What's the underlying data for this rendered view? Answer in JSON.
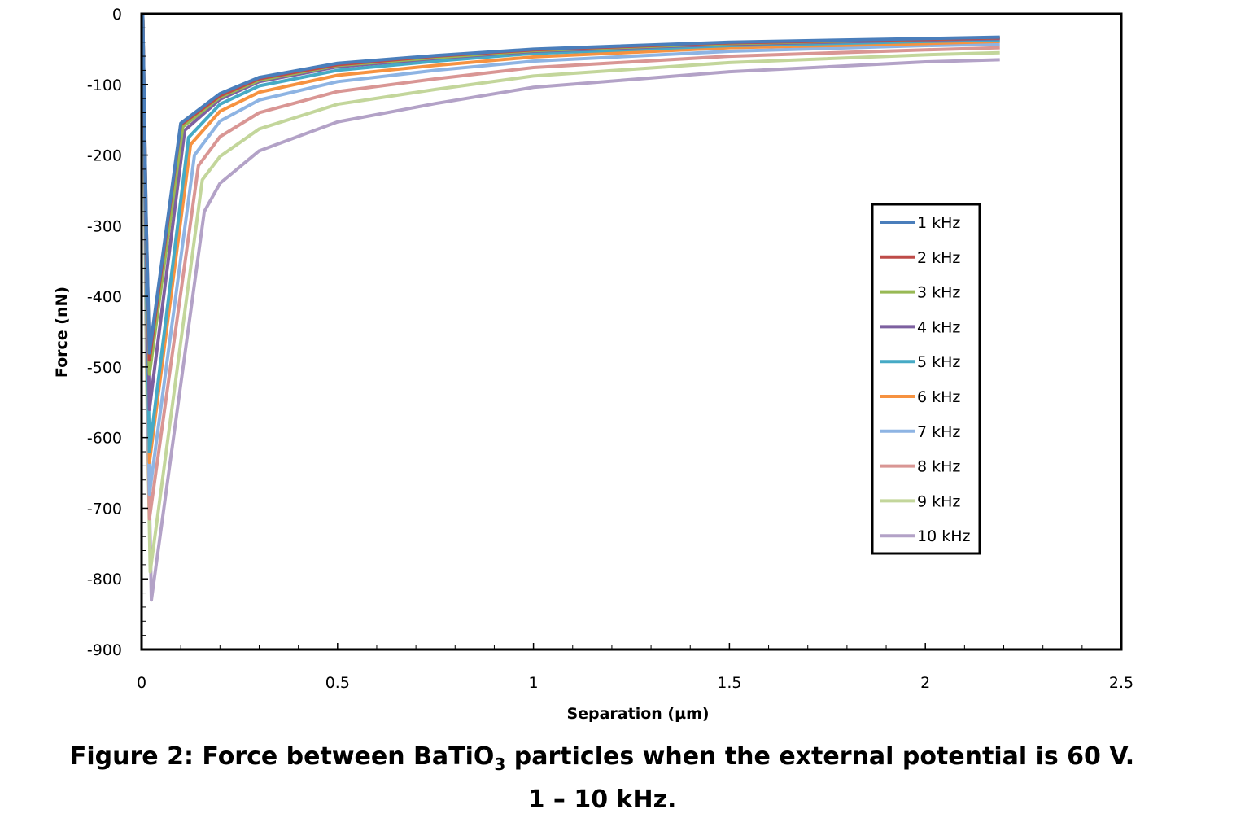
{
  "chart_data": {
    "type": "line",
    "title": "",
    "xlabel": "Separation (µm)",
    "ylabel": "Force (nN)",
    "xlim": [
      0,
      2.5
    ],
    "ylim": [
      -900,
      0
    ],
    "x_ticks": [
      "0",
      "0.5",
      "1",
      "1.5",
      "2",
      "2.5"
    ],
    "x_tick_values": [
      0,
      0.5,
      1,
      1.5,
      2,
      2.5
    ],
    "y_ticks": [
      "0",
      "-100",
      "-200",
      "-300",
      "-400",
      "-500",
      "-600",
      "-700",
      "-800",
      "-900"
    ],
    "y_tick_values": [
      0,
      -100,
      -200,
      -300,
      -400,
      -500,
      -600,
      -700,
      -800,
      -900
    ],
    "grid": false,
    "legend_position": "right",
    "series": [
      {
        "name": "1 kHz",
        "color": "#4a7ebb",
        "points": [
          [
            0.003,
            0
          ],
          [
            0.012,
            -300
          ],
          [
            0.02,
            -480
          ],
          [
            0.1,
            -155
          ],
          [
            0.2,
            -113
          ],
          [
            0.3,
            -90
          ],
          [
            0.5,
            -70
          ],
          [
            0.75,
            -59
          ],
          [
            1.0,
            -50
          ],
          [
            1.5,
            -40
          ],
          [
            2.0,
            -35
          ],
          [
            2.19,
            -33
          ]
        ]
      },
      {
        "name": "2 kHz",
        "color": "#be4b48",
        "points": [
          [
            0.003,
            0
          ],
          [
            0.012,
            -300
          ],
          [
            0.02,
            -490
          ],
          [
            0.1,
            -157
          ],
          [
            0.2,
            -116
          ],
          [
            0.3,
            -92
          ],
          [
            0.5,
            -72
          ],
          [
            0.75,
            -60
          ],
          [
            1.0,
            -51
          ],
          [
            1.5,
            -41
          ],
          [
            2.0,
            -36
          ],
          [
            2.19,
            -34
          ]
        ]
      },
      {
        "name": "3 kHz",
        "color": "#98b954",
        "points": [
          [
            0.003,
            0
          ],
          [
            0.012,
            -310
          ],
          [
            0.02,
            -510
          ],
          [
            0.105,
            -160
          ],
          [
            0.2,
            -118
          ],
          [
            0.3,
            -94
          ],
          [
            0.5,
            -73
          ],
          [
            0.75,
            -62
          ],
          [
            1.0,
            -52
          ],
          [
            1.5,
            -42
          ],
          [
            2.0,
            -36
          ],
          [
            2.19,
            -34
          ]
        ]
      },
      {
        "name": "4 kHz",
        "color": "#7d60a0",
        "points": [
          [
            0.003,
            0
          ],
          [
            0.012,
            -340
          ],
          [
            0.02,
            -560
          ],
          [
            0.11,
            -165
          ],
          [
            0.2,
            -121
          ],
          [
            0.3,
            -96
          ],
          [
            0.5,
            -75
          ],
          [
            0.75,
            -63
          ],
          [
            1.0,
            -53
          ],
          [
            1.5,
            -43
          ],
          [
            2.0,
            -37
          ],
          [
            2.19,
            -35
          ]
        ]
      },
      {
        "name": "5 kHz",
        "color": "#46aac5",
        "points": [
          [
            0.003,
            0
          ],
          [
            0.012,
            -380
          ],
          [
            0.02,
            -620
          ],
          [
            0.12,
            -175
          ],
          [
            0.2,
            -128
          ],
          [
            0.3,
            -102
          ],
          [
            0.5,
            -80
          ],
          [
            0.75,
            -67
          ],
          [
            1.0,
            -56
          ],
          [
            1.5,
            -45
          ],
          [
            2.0,
            -39
          ],
          [
            2.19,
            -37
          ]
        ]
      },
      {
        "name": "6 kHz",
        "color": "#f69240",
        "points": [
          [
            0.003,
            0
          ],
          [
            0.012,
            -390
          ],
          [
            0.02,
            -635
          ],
          [
            0.125,
            -185
          ],
          [
            0.2,
            -138
          ],
          [
            0.3,
            -111
          ],
          [
            0.5,
            -87
          ],
          [
            0.75,
            -73
          ],
          [
            1.0,
            -61
          ],
          [
            1.5,
            -48
          ],
          [
            2.0,
            -42
          ],
          [
            2.19,
            -39
          ]
        ]
      },
      {
        "name": "7 kHz",
        "color": "#8eb4e3",
        "points": [
          [
            0.003,
            0
          ],
          [
            0.012,
            -420
          ],
          [
            0.02,
            -680
          ],
          [
            0.135,
            -200
          ],
          [
            0.2,
            -152
          ],
          [
            0.3,
            -122
          ],
          [
            0.5,
            -96
          ],
          [
            0.75,
            -80
          ],
          [
            1.0,
            -67
          ],
          [
            1.5,
            -53
          ],
          [
            2.0,
            -45
          ],
          [
            2.19,
            -43
          ]
        ]
      },
      {
        "name": "8 kHz",
        "color": "#d99694",
        "points": [
          [
            0.003,
            0
          ],
          [
            0.012,
            -440
          ],
          [
            0.02,
            -715
          ],
          [
            0.145,
            -215
          ],
          [
            0.2,
            -174
          ],
          [
            0.3,
            -140
          ],
          [
            0.5,
            -110
          ],
          [
            0.75,
            -92
          ],
          [
            1.0,
            -76
          ],
          [
            1.5,
            -60
          ],
          [
            2.0,
            -51
          ],
          [
            2.19,
            -48
          ]
        ]
      },
      {
        "name": "9 kHz",
        "color": "#c3d69b",
        "points": [
          [
            0.003,
            0
          ],
          [
            0.012,
            -490
          ],
          [
            0.022,
            -790
          ],
          [
            0.155,
            -235
          ],
          [
            0.2,
            -202
          ],
          [
            0.3,
            -163
          ],
          [
            0.5,
            -128
          ],
          [
            0.75,
            -107
          ],
          [
            1.0,
            -88
          ],
          [
            1.5,
            -69
          ],
          [
            2.0,
            -58
          ],
          [
            2.19,
            -55
          ]
        ]
      },
      {
        "name": "10 kHz",
        "color": "#b3a2c7",
        "points": [
          [
            0.003,
            0
          ],
          [
            0.014,
            -520
          ],
          [
            0.025,
            -830
          ],
          [
            0.16,
            -280
          ],
          [
            0.2,
            -240
          ],
          [
            0.3,
            -194
          ],
          [
            0.5,
            -153
          ],
          [
            0.75,
            -127
          ],
          [
            1.0,
            -104
          ],
          [
            1.5,
            -82
          ],
          [
            2.0,
            -68
          ],
          [
            2.19,
            -65
          ]
        ]
      }
    ]
  },
  "caption": {
    "line1_pre": "Figure 2: Force between BaTiO",
    "line1_sub": "3",
    "line1_post": " particles when the external potential is 60 V.",
    "line2": "1 – 10 kHz."
  }
}
